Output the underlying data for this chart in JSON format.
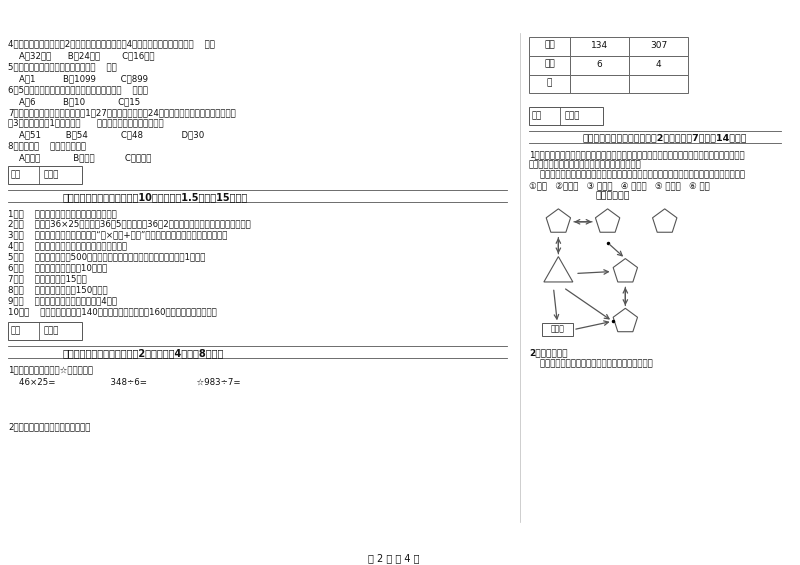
{
  "title": "第 2 页 共 4 页",
  "bg_color": "#ffffff",
  "left_content": {
    "q4": "4．一个正方形的边长是2厘米，现在将边长扩大到4倍，现在正方形的周长是（    ）。",
    "q4_opts": "    A．32厘米      B．24厘米        C．16厘米",
    "q5": "5．最小三位数和最大三位数的和是（    ）。",
    "q5_opts": "    A．1          B．1099         C．899",
    "q6": "6．5名同学打乒乓球，每两人打一场，共要打（    ）场。",
    "q6_opts": "    A．6          B．10            C．15",
    "q7": "7．学校开设两个兴趣小组，三（1）27人参加书法小组，24人参加棋艺小组，两个小组都参加",
    "q7b": "的3人，那么三（1）一共有（      ）人参加了书法和棋艺小组。",
    "q7_opts": "    A．51         B．54            C．48              D．30",
    "q8": "8．四边形（    ）平行四边形。",
    "q8_opts": "    A．一定            B．可能           C．不可能",
    "section3_header": "三、仔细推敲，正确判断（儅10小题，每题1.5分，全15分）。",
    "judge_items": [
      "1．（    ）小明面对着东方时，背对着西方。",
      "2．（    ）计算36×25时，先把36和5相乘，再把36和2相乘，最后把两次乘得的结果相加。",
      "3．（    ）有余数除法的验算方法是“商×除数+余数”，看得到的结果是否与被除数相等。",
      "4．（    ）长方形的周长就是它四条边长度的和。",
      "5．（    ）小明家离学校500米，他每天上学、回家，一个来回一共要走1千米。",
      "6．（    ）小明家客厅面积是10公顿。",
      "7．（    ）李老师身高15米。",
      "8．（    ）一本故事书约重150千克。",
      "9．（    ）正方形的周长是它的边长的4倍。",
      "10．（    ）一条河平均水深140厘米，一匹小马身高是160厘米，它肯定能通过。"
    ],
    "section4_header": "四、看清题目，细心计算（共2小题，每题4分，共8分）。",
    "q_calc1": "1．列竖式计算。（带☆的要验算）",
    "calc_items": "    46×25=                    348÷6=                  ☆983÷7="
  },
  "right_content": {
    "table_rows": [
      [
        "乘数",
        "134",
        "307"
      ],
      [
        "乘数",
        "6",
        "4"
      ],
      [
        "积",
        "",
        ""
      ]
    ],
    "section5_header": "五、认真思考，综合能力（共2小题，每题7分，共14分）。",
    "zoo_text1": "1．走进动物园大门，正北面是狮子山和熊猫馆，狮子山的东侧是飞禽馆，西侧是猛禅馆，大象",
    "zoo_text2": "馆和鱼馆的场地分别在动物园的东北角和西北角。",
    "zoo_inst": "    根据小强的描述，请你把这些动物场馆所在的位置，在动物园的导游图上用序号表示出来。",
    "zoo_labels": "①狮山   ②熊猫馆   ③ 飞禽馆   ④ 猛禅馆   ⑤ 大象馆   ⑥ 鱼馆",
    "zoo_map_title": "动物园导游图",
    "q2_header": "2．动手操作。",
    "q2_text": "    量出每条边的长度，以毫米为单位，并计算周长。"
  },
  "scoring_label": "得分",
  "scoring_label2": "评卷人",
  "q2_left": "2．把乘得的积填在下面的空格里。"
}
